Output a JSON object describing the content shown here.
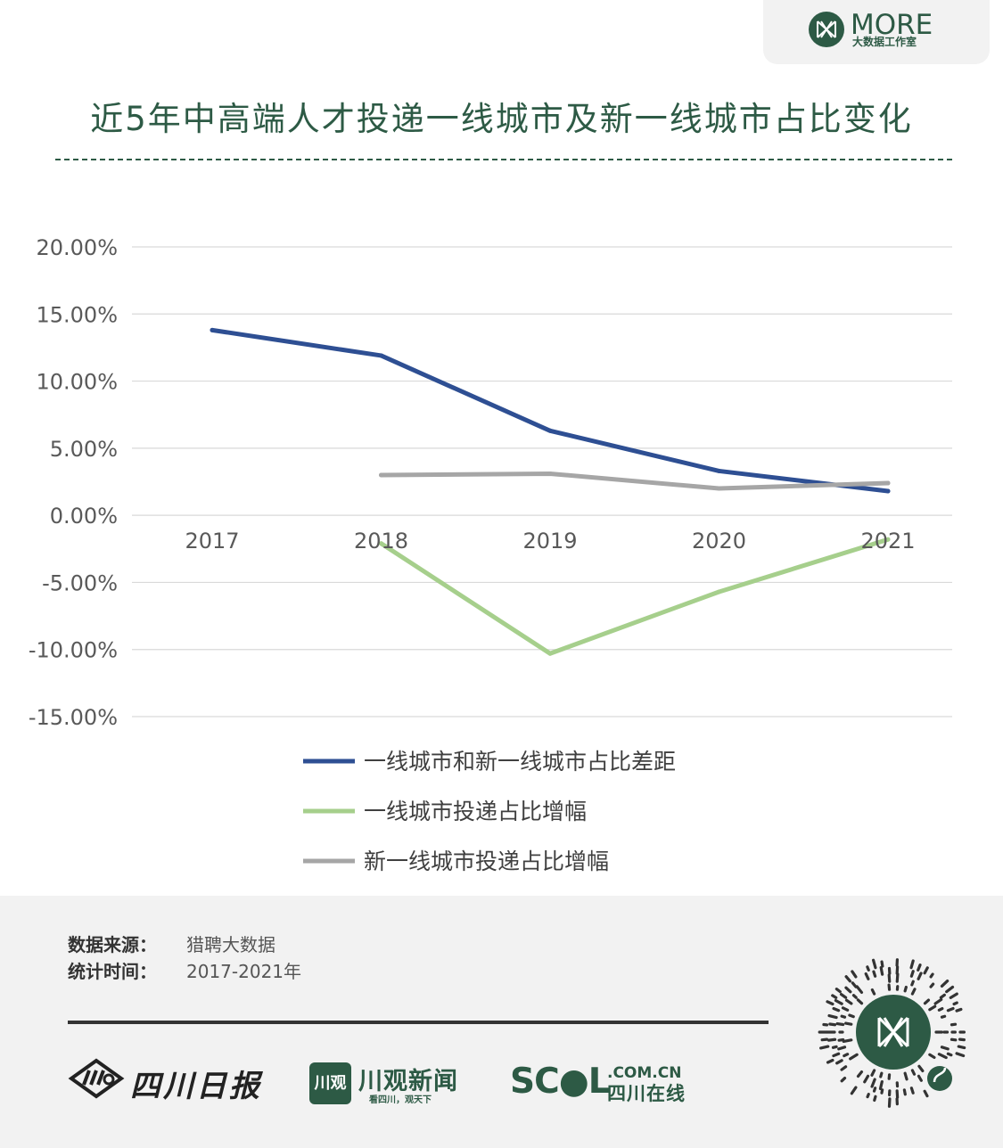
{
  "brand": {
    "name": "MORE",
    "subtitle": "大数据工作室",
    "color": "#2d5a45"
  },
  "title": "近5年中高端人才投递一线城市及新一线城市占比变化",
  "chart_data": {
    "type": "line",
    "title": "近5年中高端人才投递一线城市及新一线城市占比变化",
    "x": [
      "2017",
      "2018",
      "2019",
      "2020",
      "2021"
    ],
    "y_ticks": [
      "20.00%",
      "15.00%",
      "10.00%",
      "5.00%",
      "0.00%",
      "-5.00%",
      "-10.00%",
      "-15.00%"
    ],
    "ylim": [
      -15,
      20
    ],
    "unit": "%",
    "grid": true,
    "legend_position": "bottom",
    "series": [
      {
        "name": "一线城市和新一线城市占比差距",
        "color": "#2e4f93",
        "values": [
          13.8,
          11.9,
          6.3,
          3.3,
          1.8
        ]
      },
      {
        "name": "一线城市投递占比增幅",
        "color": "#a6cf8c",
        "values": [
          null,
          -2.1,
          -10.3,
          -5.7,
          -1.8
        ]
      },
      {
        "name": "新一线城市投递占比增幅",
        "color": "#a6a6a6",
        "values": [
          null,
          3.0,
          3.1,
          2.0,
          2.4
        ]
      }
    ]
  },
  "footer": {
    "source_label": "数据来源：",
    "source_value": "猎聘大数据",
    "period_label": "统计时间：",
    "period_value": "2017-2021年",
    "logos": {
      "sichuan_daily": "四川日报",
      "chuanguan_box": "川观",
      "chuanguan_name": "川观新闻",
      "chuanguan_slogan": "看四川，观天下",
      "scol": "SC●L",
      "scol_domain": ".COM.CN",
      "scol_name": "四川在线"
    },
    "qr_icon": "mini-program-qr-icon"
  }
}
